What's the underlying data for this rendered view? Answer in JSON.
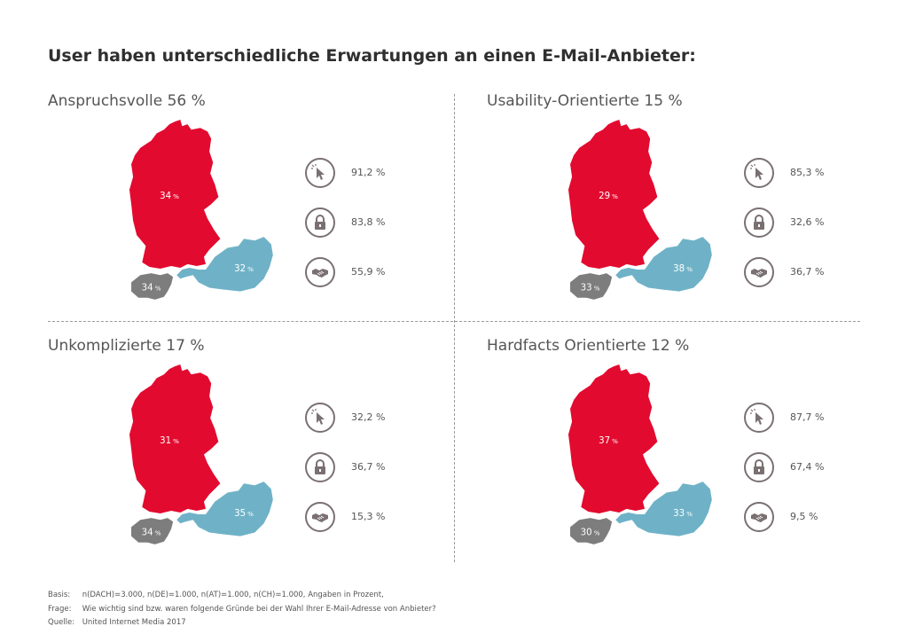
{
  "title": "User haben unterschiedliche Erwartungen an einen E-Mail-Anbieter:",
  "colors": {
    "de": "#e30a2f",
    "at": "#6fb2c7",
    "ch": "#7d7d7d",
    "icon": "#7a7072"
  },
  "icons": [
    "cursor-icon",
    "lock-icon",
    "handshake-icon"
  ],
  "panels": [
    {
      "title": "Anspruchsvolle 56 %",
      "de": "34",
      "at": "32",
      "ch": "34",
      "stats": [
        "91,2 %",
        "83,8 %",
        "55,9 %"
      ]
    },
    {
      "title": "Usability-Orientierte 15 %",
      "de": "29",
      "at": "38",
      "ch": "33",
      "stats": [
        "85,3 %",
        "32,6 %",
        "36,7 %"
      ]
    },
    {
      "title": "Unkomplizierte 17 %",
      "de": "31",
      "at": "35",
      "ch": "34",
      "stats": [
        "32,2 %",
        "36,7 %",
        "15,3 %"
      ]
    },
    {
      "title": "Hardfacts Orientierte 12 %",
      "de": "37",
      "at": "33",
      "ch": "30",
      "stats": [
        "87,7 %",
        "67,4 %",
        "9,5 %"
      ]
    }
  ],
  "pct_sign": "%",
  "footer": {
    "basis_label": "Basis:",
    "basis": "n(DACH)=3.000, n(DE)=1.000, n(AT)=1.000, n(CH)=1.000, Angaben in Prozent,",
    "frage_label": "Frage:",
    "frage": "Wie wichtig sind bzw. waren folgende Gründe bei der Wahl Ihrer E-Mail-Adresse von Anbieter?",
    "quelle_label": "Quelle:",
    "quelle": "United Internet Media 2017"
  }
}
